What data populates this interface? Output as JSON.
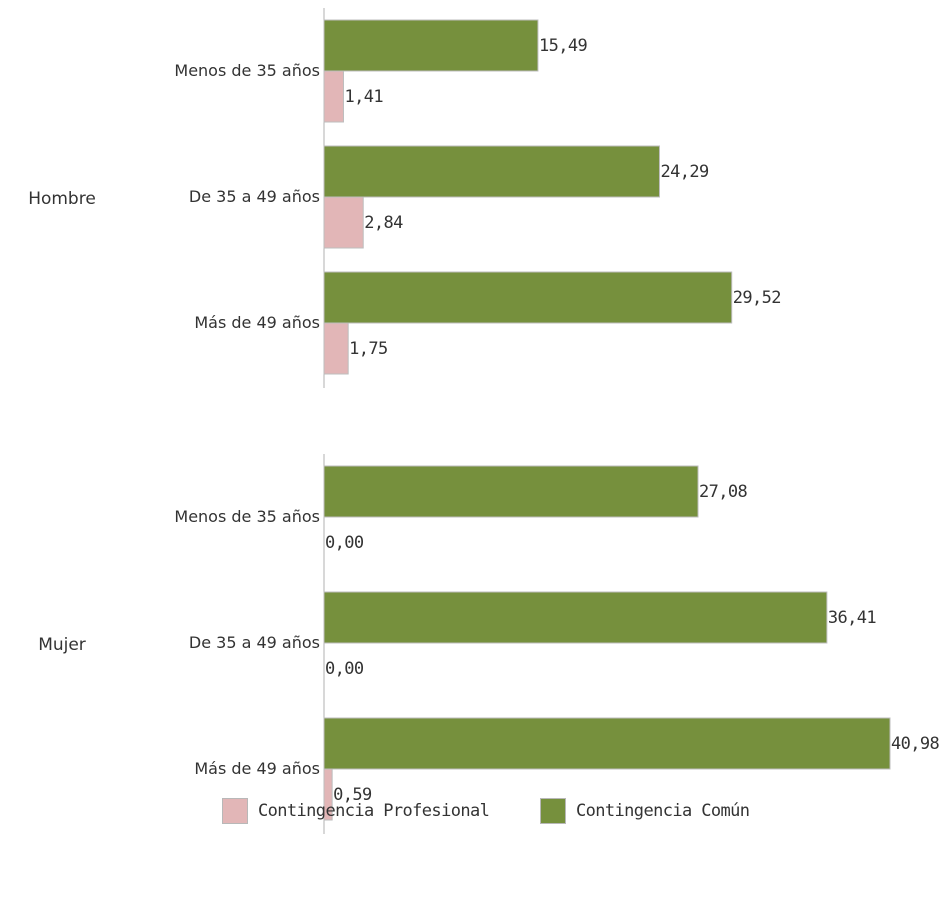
{
  "chart_data": {
    "type": "bar",
    "orientation": "horizontal",
    "groups": [
      {
        "name": "Hombre",
        "categories": [
          "Menos de 35 años",
          "De 35 a 49 años",
          "Más de 49 años"
        ],
        "series": [
          {
            "name": "Contingencia Común",
            "values": [
              15.49,
              24.29,
              29.52
            ],
            "labels": [
              "15,49",
              "24,29",
              "29,52"
            ]
          },
          {
            "name": "Contingencia Profesional",
            "values": [
              1.41,
              2.84,
              1.75
            ],
            "labels": [
              "1,41",
              "2,84",
              "1,75"
            ]
          }
        ]
      },
      {
        "name": "Mujer",
        "categories": [
          "Menos de 35 años",
          "De 35 a 49 años",
          "Más de 49 años"
        ],
        "series": [
          {
            "name": "Contingencia Común",
            "values": [
              27.08,
              36.41,
              40.98
            ],
            "labels": [
              "27,08",
              "36,41",
              "40,98"
            ]
          },
          {
            "name": "Contingencia Profesional",
            "values": [
              0.0,
              0.0,
              0.59
            ],
            "labels": [
              "0,00",
              "0,00",
              "0,59"
            ]
          }
        ]
      }
    ],
    "xlim": [
      0,
      41
    ],
    "grid": false,
    "legend_position": "bottom"
  },
  "legend": [
    {
      "label": "Contingencia Profesional",
      "color": "#e2b6b7"
    },
    {
      "label": "Contingencia Común",
      "color": "#76903d"
    }
  ],
  "colors": {
    "Contingencia Común": "#76903d",
    "Contingencia Profesional": "#e2b6b7",
    "bar_border": "#bdbdbd",
    "axis": "#b0b0b0",
    "text": "#333333"
  }
}
